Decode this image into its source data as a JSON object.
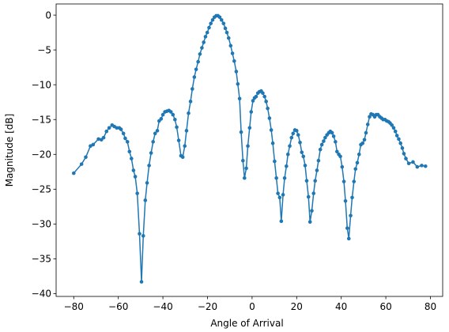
{
  "chart_data": {
    "type": "line",
    "title": "",
    "xlabel": "Angle of Arrival",
    "ylabel": "Magnitude [dB]",
    "xlim": [
      -87.9,
      85.5
    ],
    "ylim": [
      -40.4,
      1.6
    ],
    "xticks": [
      -80,
      -60,
      -40,
      -20,
      0,
      20,
      40,
      60,
      80
    ],
    "yticks": [
      0,
      -5,
      -10,
      -15,
      -20,
      -25,
      -30,
      -35,
      -40
    ],
    "xtick_labels": [
      "−80",
      "−60",
      "−40",
      "−20",
      "0",
      "20",
      "40",
      "60",
      "80"
    ],
    "ytick_labels": [
      "0",
      "−5",
      "−10",
      "−15",
      "−20",
      "−25",
      "−30",
      "−35",
      "−40"
    ],
    "grid": false,
    "legend": "none",
    "color": "#1f77b4",
    "marker": "circle",
    "series": [
      {
        "points": [
          [
            -80.0,
            -22.7
          ],
          [
            -76.5,
            -21.4
          ],
          [
            -74.6,
            -20.4
          ],
          [
            -72.5,
            -18.8
          ],
          [
            -71.3,
            -18.6
          ],
          [
            -68.9,
            -17.8
          ],
          [
            -67.6,
            -17.9
          ],
          [
            -66.6,
            -17.6
          ],
          [
            -65.3,
            -16.7
          ],
          [
            -64.1,
            -16.2
          ],
          [
            -62.8,
            -15.8
          ],
          [
            -61.8,
            -16.0
          ],
          [
            -60.7,
            -16.2
          ],
          [
            -59.6,
            -16.2
          ],
          [
            -58.8,
            -16.4
          ],
          [
            -57.7,
            -17.0
          ],
          [
            -56.9,
            -17.7
          ],
          [
            -55.9,
            -18.2
          ],
          [
            -55.0,
            -19.6
          ],
          [
            -54.1,
            -20.6
          ],
          [
            -53.2,
            -22.3
          ],
          [
            -52.4,
            -23.2
          ],
          [
            -51.5,
            -25.6
          ],
          [
            -50.5,
            -31.4
          ],
          [
            -49.6,
            -38.3
          ],
          [
            -48.8,
            -31.7
          ],
          [
            -47.9,
            -26.6
          ],
          [
            -47.1,
            -24.1
          ],
          [
            -46.2,
            -21.6
          ],
          [
            -45.3,
            -19.8
          ],
          [
            -44.4,
            -18.2
          ],
          [
            -43.5,
            -17.0
          ],
          [
            -42.5,
            -16.6
          ],
          [
            -41.7,
            -15.2
          ],
          [
            -40.8,
            -14.9
          ],
          [
            -40.0,
            -14.3
          ],
          [
            -39.1,
            -13.9
          ],
          [
            -38.2,
            -13.8
          ],
          [
            -37.3,
            -13.7
          ],
          [
            -36.4,
            -13.9
          ],
          [
            -35.5,
            -14.3
          ],
          [
            -34.6,
            -15.0
          ],
          [
            -33.8,
            -16.1
          ],
          [
            -32.9,
            -18.0
          ],
          [
            -31.9,
            -20.2
          ],
          [
            -31.1,
            -20.4
          ],
          [
            -30.2,
            -18.8
          ],
          [
            -29.4,
            -16.6
          ],
          [
            -28.5,
            -14.1
          ],
          [
            -27.6,
            -12.4
          ],
          [
            -26.8,
            -10.6
          ],
          [
            -25.9,
            -8.9
          ],
          [
            -25.1,
            -7.8
          ],
          [
            -24.2,
            -6.7
          ],
          [
            -23.4,
            -5.6
          ],
          [
            -22.5,
            -4.7
          ],
          [
            -21.7,
            -3.9
          ],
          [
            -20.9,
            -3.1
          ],
          [
            -20.1,
            -2.5
          ],
          [
            -19.3,
            -1.8
          ],
          [
            -18.5,
            -1.2
          ],
          [
            -17.7,
            -0.7
          ],
          [
            -16.9,
            -0.3
          ],
          [
            -16.1,
            -0.1
          ],
          [
            -15.3,
            -0.1
          ],
          [
            -14.5,
            -0.3
          ],
          [
            -13.7,
            -0.7
          ],
          [
            -12.8,
            -1.2
          ],
          [
            -12.0,
            -1.9
          ],
          [
            -11.3,
            -2.5
          ],
          [
            -10.5,
            -3.3
          ],
          [
            -9.6,
            -4.4
          ],
          [
            -8.8,
            -5.5
          ],
          [
            -8.0,
            -6.6
          ],
          [
            -7.1,
            -8.1
          ],
          [
            -6.4,
            -9.9
          ],
          [
            -5.6,
            -12.0
          ],
          [
            -4.9,
            -16.8
          ],
          [
            -4.1,
            -20.9
          ],
          [
            -3.4,
            -23.4
          ],
          [
            -2.6,
            -22.0
          ],
          [
            -1.9,
            -18.8
          ],
          [
            -1.1,
            -16.2
          ],
          [
            -0.4,
            -13.9
          ],
          [
            0.4,
            -12.3
          ],
          [
            1.1,
            -11.9
          ],
          [
            1.8,
            -11.7
          ],
          [
            2.6,
            -11.2
          ],
          [
            3.3,
            -11.0
          ],
          [
            4.1,
            -10.9
          ],
          [
            4.8,
            -11.2
          ],
          [
            5.6,
            -11.7
          ],
          [
            6.3,
            -12.4
          ],
          [
            7.0,
            -13.4
          ],
          [
            7.8,
            -14.8
          ],
          [
            8.6,
            -16.5
          ],
          [
            9.3,
            -18.4
          ],
          [
            10.1,
            -21.0
          ],
          [
            10.9,
            -23.4
          ],
          [
            11.6,
            -25.6
          ],
          [
            12.4,
            -26.2
          ],
          [
            13.1,
            -29.6
          ],
          [
            13.9,
            -25.8
          ],
          [
            14.6,
            -23.4
          ],
          [
            15.4,
            -21.7
          ],
          [
            16.1,
            -20.0
          ],
          [
            16.9,
            -18.8
          ],
          [
            17.7,
            -17.6
          ],
          [
            18.4,
            -17.0
          ],
          [
            19.2,
            -16.5
          ],
          [
            20.0,
            -16.6
          ],
          [
            20.7,
            -17.2
          ],
          [
            21.5,
            -18.3
          ],
          [
            22.3,
            -19.7
          ],
          [
            23.0,
            -20.3
          ],
          [
            23.8,
            -21.6
          ],
          [
            24.5,
            -23.8
          ],
          [
            25.3,
            -26.1
          ],
          [
            26.0,
            -29.7
          ],
          [
            26.8,
            -28.1
          ],
          [
            27.6,
            -25.6
          ],
          [
            28.3,
            -23.8
          ],
          [
            29.1,
            -22.3
          ],
          [
            29.8,
            -20.9
          ],
          [
            30.6,
            -19.3
          ],
          [
            31.3,
            -18.6
          ],
          [
            32.1,
            -18.1
          ],
          [
            32.8,
            -17.6
          ],
          [
            33.6,
            -17.2
          ],
          [
            34.4,
            -16.9
          ],
          [
            35.1,
            -16.7
          ],
          [
            35.9,
            -16.9
          ],
          [
            36.6,
            -17.4
          ],
          [
            37.4,
            -18.2
          ],
          [
            38.1,
            -19.6
          ],
          [
            38.9,
            -20.0
          ],
          [
            39.6,
            -20.3
          ],
          [
            40.4,
            -21.8
          ],
          [
            41.2,
            -23.9
          ],
          [
            41.9,
            -26.7
          ],
          [
            42.7,
            -30.6
          ],
          [
            43.4,
            -32.1
          ],
          [
            44.2,
            -28.8
          ],
          [
            44.9,
            -26.2
          ],
          [
            45.7,
            -23.9
          ],
          [
            46.4,
            -22.1
          ],
          [
            47.2,
            -21.2
          ],
          [
            48.0,
            -20.0
          ],
          [
            48.8,
            -18.6
          ],
          [
            49.6,
            -18.4
          ],
          [
            50.4,
            -17.9
          ],
          [
            51.1,
            -16.9
          ],
          [
            51.9,
            -15.7
          ],
          [
            52.7,
            -14.6
          ],
          [
            53.4,
            -14.2
          ],
          [
            54.2,
            -14.3
          ],
          [
            55.0,
            -14.6
          ],
          [
            55.7,
            -14.3
          ],
          [
            56.5,
            -14.3
          ],
          [
            57.3,
            -14.6
          ],
          [
            58.1,
            -14.8
          ],
          [
            58.8,
            -15.0
          ],
          [
            59.6,
            -15.0
          ],
          [
            60.4,
            -15.2
          ],
          [
            61.2,
            -15.3
          ],
          [
            61.9,
            -15.5
          ],
          [
            62.7,
            -15.8
          ],
          [
            63.5,
            -16.2
          ],
          [
            64.3,
            -16.7
          ],
          [
            65.0,
            -17.3
          ],
          [
            65.8,
            -17.8
          ],
          [
            66.6,
            -18.4
          ],
          [
            67.4,
            -19.1
          ],
          [
            68.1,
            -19.9
          ],
          [
            69.0,
            -20.6
          ],
          [
            70.3,
            -21.3
          ],
          [
            72.2,
            -21.1
          ],
          [
            74.1,
            -21.8
          ],
          [
            76.1,
            -21.6
          ],
          [
            77.8,
            -21.7
          ]
        ]
      }
    ]
  }
}
